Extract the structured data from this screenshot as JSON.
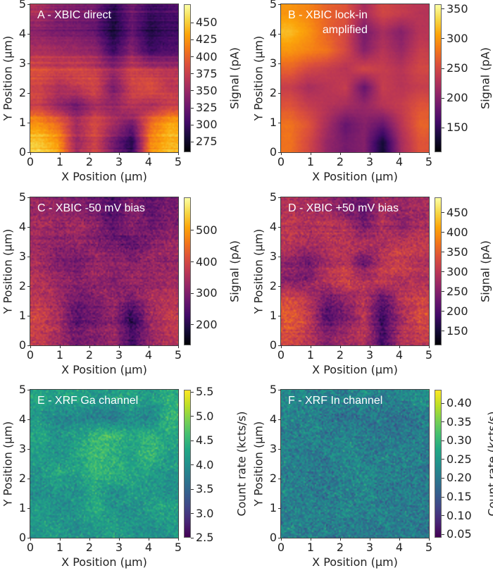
{
  "chart_data": [
    {
      "type": "heatmap",
      "title": [
        "A - XBIC direct"
      ],
      "xlabel": "X Position (µm)",
      "ylabel": "Y Position (µm)",
      "xlim": [
        0,
        5
      ],
      "ylim": [
        0,
        5
      ],
      "xticks": [
        "0",
        "1",
        "2",
        "3",
        "4",
        "5"
      ],
      "yticks": [
        "0",
        "1",
        "2",
        "3",
        "4",
        "5"
      ],
      "cmap": "inferno",
      "colorbar": {
        "label": "Signal (pA)",
        "range": [
          260,
          477
        ],
        "ticks": [
          "275",
          "300",
          "325",
          "350",
          "375",
          "400",
          "425",
          "450"
        ]
      },
      "z_coarse_rows_top_to_bottom": [
        [
          360,
          340,
          335,
          330,
          290,
          330,
          300,
          310
        ],
        [
          340,
          330,
          330,
          320,
          280,
          320,
          285,
          300
        ],
        [
          360,
          355,
          350,
          345,
          300,
          340,
          300,
          310
        ],
        [
          390,
          380,
          385,
          375,
          350,
          380,
          370,
          365
        ],
        [
          380,
          360,
          370,
          385,
          330,
          380,
          390,
          370
        ],
        [
          380,
          350,
          330,
          360,
          350,
          370,
          360,
          380
        ],
        [
          430,
          410,
          360,
          390,
          360,
          330,
          410,
          440
        ],
        [
          450,
          430,
          350,
          380,
          330,
          290,
          420,
          440
        ]
      ]
    },
    {
      "type": "heatmap",
      "title": [
        "B - XBIC lock-in",
        "amplified"
      ],
      "xlabel": "X Position (µm)",
      "ylabel": "Y Position (µm)",
      "xlim": [
        0,
        5
      ],
      "ylim": [
        0,
        5
      ],
      "xticks": [
        "0",
        "1",
        "2",
        "3",
        "4",
        "5"
      ],
      "yticks": [
        "0",
        "1",
        "2",
        "3",
        "4",
        "5"
      ],
      "cmap": "inferno",
      "colorbar": {
        "label": "Signal (pA)",
        "range": [
          109,
          358
        ],
        "ticks": [
          "150",
          "200",
          "250",
          "300",
          "350"
        ]
      },
      "z_coarse_rows_top_to_bottom": [
        [
          300,
          290,
          270,
          260,
          220,
          250,
          240,
          230
        ],
        [
          320,
          300,
          270,
          250,
          190,
          220,
          200,
          230
        ],
        [
          300,
          290,
          280,
          250,
          200,
          230,
          210,
          240
        ],
        [
          270,
          250,
          240,
          230,
          250,
          240,
          230,
          250
        ],
        [
          240,
          220,
          230,
          240,
          180,
          240,
          230,
          240
        ],
        [
          260,
          240,
          230,
          220,
          210,
          230,
          240,
          260
        ],
        [
          280,
          260,
          220,
          180,
          200,
          180,
          230,
          270
        ],
        [
          280,
          250,
          210,
          190,
          200,
          130,
          220,
          260
        ]
      ]
    },
    {
      "type": "heatmap",
      "title": [
        "C - XBIC -50 mV bias"
      ],
      "xlabel": "X Position (µm)",
      "ylabel": "Y Position (µm)",
      "xlim": [
        0,
        5
      ],
      "ylim": [
        0,
        5
      ],
      "xticks": [
        "0",
        "1",
        "2",
        "3",
        "4",
        "5"
      ],
      "yticks": [
        "0",
        "1",
        "2",
        "3",
        "4",
        "5"
      ],
      "cmap": "inferno",
      "colorbar": {
        "label": "Signal (pA)",
        "range": [
          135,
          605
        ],
        "ticks": [
          "200",
          "300",
          "400",
          "500"
        ]
      },
      "z_coarse_rows_top_to_bottom": [
        [
          330,
          320,
          300,
          280,
          240,
          300,
          260,
          290
        ],
        [
          350,
          330,
          340,
          320,
          260,
          320,
          280,
          300
        ],
        [
          330,
          310,
          320,
          300,
          280,
          260,
          300,
          330
        ],
        [
          340,
          300,
          280,
          330,
          320,
          310,
          330,
          320
        ],
        [
          360,
          330,
          310,
          330,
          300,
          330,
          320,
          340
        ],
        [
          370,
          340,
          280,
          300,
          330,
          280,
          350,
          360
        ],
        [
          400,
          350,
          250,
          280,
          320,
          200,
          330,
          380
        ],
        [
          380,
          340,
          280,
          300,
          330,
          230,
          320,
          360
        ]
      ]
    },
    {
      "type": "heatmap",
      "title": [
        "D - XBIC +50 mV bias"
      ],
      "xlabel": "X Position (µm)",
      "ylabel": "Y Position (µm)",
      "xlim": [
        0,
        5
      ],
      "ylim": [
        0,
        5
      ],
      "xticks": [
        "0",
        "1",
        "2",
        "3",
        "4",
        "5"
      ],
      "yticks": [
        "0",
        "1",
        "2",
        "3",
        "4",
        "5"
      ],
      "cmap": "inferno",
      "colorbar": {
        "label": "Signal (pA)",
        "range": [
          114,
          489
        ],
        "ticks": [
          "150",
          "200",
          "250",
          "300",
          "350",
          "400",
          "450"
        ]
      },
      "z_coarse_rows_top_to_bottom": [
        [
          290,
          280,
          270,
          240,
          220,
          280,
          270,
          280
        ],
        [
          300,
          290,
          300,
          290,
          230,
          290,
          250,
          280
        ],
        [
          300,
          280,
          290,
          300,
          290,
          280,
          300,
          310
        ],
        [
          260,
          230,
          280,
          300,
          220,
          300,
          320,
          290
        ],
        [
          250,
          250,
          300,
          320,
          290,
          310,
          290,
          290
        ],
        [
          330,
          300,
          230,
          260,
          300,
          210,
          300,
          320
        ],
        [
          350,
          310,
          200,
          240,
          300,
          180,
          280,
          330
        ],
        [
          330,
          300,
          250,
          280,
          300,
          190,
          290,
          310
        ]
      ]
    },
    {
      "type": "heatmap",
      "title": [
        "E - XRF Ga channel"
      ],
      "xlabel": "X Position (µm)",
      "ylabel": "Y Position (µm)",
      "xlim": [
        0,
        5
      ],
      "ylim": [
        0,
        5
      ],
      "xticks": [
        "0",
        "1",
        "2",
        "3",
        "4",
        "5"
      ],
      "yticks": [
        "0",
        "1",
        "2",
        "3",
        "4",
        "5"
      ],
      "cmap": "viridis",
      "colorbar": {
        "label": "Count rate (kcts/s)",
        "range": [
          2.5,
          5.55
        ],
        "ticks": [
          "2.5",
          "3.0",
          "3.5",
          "4.0",
          "4.5",
          "5.0",
          "5.5"
        ]
      },
      "z_coarse_rows_top_to_bottom": [
        [
          4.3,
          4.2,
          4.3,
          4.1,
          4.2,
          4.3,
          4.1,
          4.4
        ],
        [
          4.1,
          3.9,
          3.9,
          3.8,
          3.7,
          4.0,
          3.8,
          4.5
        ],
        [
          4.3,
          4.1,
          4.2,
          4.5,
          4.6,
          4.3,
          4.5,
          4.3
        ],
        [
          4.2,
          4.0,
          4.3,
          4.6,
          4.4,
          4.2,
          4.6,
          4.2
        ],
        [
          4.1,
          4.3,
          4.2,
          4.5,
          4.5,
          4.3,
          4.2,
          4.1
        ],
        [
          4.0,
          4.1,
          4.0,
          4.3,
          4.0,
          4.2,
          4.1,
          4.0
        ],
        [
          4.2,
          4.0,
          4.1,
          4.4,
          4.1,
          4.0,
          4.2,
          4.3
        ],
        [
          4.1,
          4.2,
          4.0,
          4.1,
          4.2,
          4.1,
          4.0,
          4.1
        ]
      ]
    },
    {
      "type": "heatmap",
      "title": [
        "F - XRF In channel"
      ],
      "xlabel": "X Position (µm)",
      "ylabel": "Y Position (µm)",
      "xlim": [
        0,
        5
      ],
      "ylim": [
        0,
        5
      ],
      "xticks": [
        "0",
        "1",
        "2",
        "3",
        "4",
        "5"
      ],
      "yticks": [
        "0",
        "1",
        "2",
        "3",
        "4",
        "5"
      ],
      "cmap": "viridis",
      "colorbar": {
        "label": "Count rate (kcts/s)",
        "range": [
          0.041,
          0.436
        ],
        "ticks": [
          "0.05",
          "0.10",
          "0.15",
          "0.20",
          "0.25",
          "0.30",
          "0.35",
          "0.40"
        ]
      },
      "z_coarse_rows_top_to_bottom": [
        [
          0.23,
          0.22,
          0.22,
          0.21,
          0.22,
          0.21,
          0.22,
          0.24
        ],
        [
          0.22,
          0.21,
          0.2,
          0.19,
          0.2,
          0.2,
          0.18,
          0.21
        ],
        [
          0.21,
          0.22,
          0.21,
          0.22,
          0.21,
          0.2,
          0.2,
          0.21
        ],
        [
          0.22,
          0.2,
          0.21,
          0.23,
          0.21,
          0.21,
          0.22,
          0.2
        ],
        [
          0.21,
          0.21,
          0.2,
          0.22,
          0.23,
          0.22,
          0.21,
          0.2
        ],
        [
          0.22,
          0.2,
          0.21,
          0.21,
          0.22,
          0.2,
          0.21,
          0.21
        ],
        [
          0.21,
          0.22,
          0.21,
          0.23,
          0.21,
          0.22,
          0.2,
          0.21
        ],
        [
          0.22,
          0.21,
          0.2,
          0.21,
          0.2,
          0.21,
          0.21,
          0.2
        ]
      ]
    }
  ]
}
